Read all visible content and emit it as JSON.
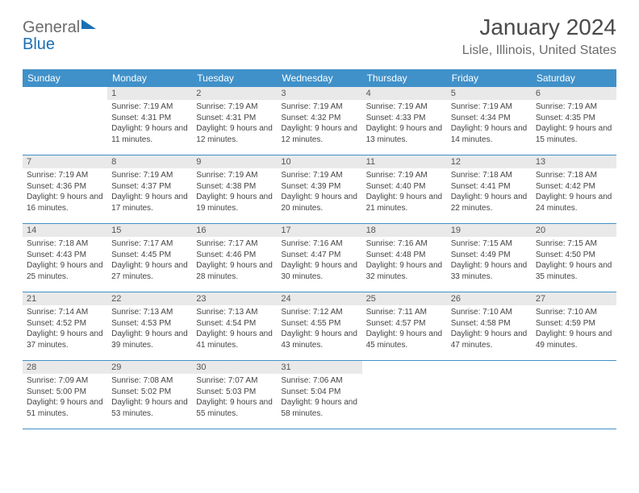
{
  "logo": {
    "word1": "General",
    "word2": "Blue"
  },
  "title": "January 2024",
  "location": "Lisle, Illinois, United States",
  "colors": {
    "header_bar": "#4091c9",
    "daynum_bg": "#e9e9e9",
    "text": "#444444",
    "title": "#4a4a4a",
    "logo_gray": "#6b6b6b",
    "logo_blue": "#1a6fb5",
    "border": "#4091c9",
    "background": "#ffffff"
  },
  "typography": {
    "title_fontsize": 28,
    "location_fontsize": 16,
    "dow_fontsize": 12,
    "daynum_fontsize": 11,
    "body_fontsize": 10
  },
  "daysOfWeek": [
    "Sunday",
    "Monday",
    "Tuesday",
    "Wednesday",
    "Thursday",
    "Friday",
    "Saturday"
  ],
  "weeks": [
    [
      {
        "num": "",
        "sunrise": "",
        "sunset": "",
        "daylight": ""
      },
      {
        "num": "1",
        "sunrise": "Sunrise: 7:19 AM",
        "sunset": "Sunset: 4:31 PM",
        "daylight": "Daylight: 9 hours and 11 minutes."
      },
      {
        "num": "2",
        "sunrise": "Sunrise: 7:19 AM",
        "sunset": "Sunset: 4:31 PM",
        "daylight": "Daylight: 9 hours and 12 minutes."
      },
      {
        "num": "3",
        "sunrise": "Sunrise: 7:19 AM",
        "sunset": "Sunset: 4:32 PM",
        "daylight": "Daylight: 9 hours and 12 minutes."
      },
      {
        "num": "4",
        "sunrise": "Sunrise: 7:19 AM",
        "sunset": "Sunset: 4:33 PM",
        "daylight": "Daylight: 9 hours and 13 minutes."
      },
      {
        "num": "5",
        "sunrise": "Sunrise: 7:19 AM",
        "sunset": "Sunset: 4:34 PM",
        "daylight": "Daylight: 9 hours and 14 minutes."
      },
      {
        "num": "6",
        "sunrise": "Sunrise: 7:19 AM",
        "sunset": "Sunset: 4:35 PM",
        "daylight": "Daylight: 9 hours and 15 minutes."
      }
    ],
    [
      {
        "num": "7",
        "sunrise": "Sunrise: 7:19 AM",
        "sunset": "Sunset: 4:36 PM",
        "daylight": "Daylight: 9 hours and 16 minutes."
      },
      {
        "num": "8",
        "sunrise": "Sunrise: 7:19 AM",
        "sunset": "Sunset: 4:37 PM",
        "daylight": "Daylight: 9 hours and 17 minutes."
      },
      {
        "num": "9",
        "sunrise": "Sunrise: 7:19 AM",
        "sunset": "Sunset: 4:38 PM",
        "daylight": "Daylight: 9 hours and 19 minutes."
      },
      {
        "num": "10",
        "sunrise": "Sunrise: 7:19 AM",
        "sunset": "Sunset: 4:39 PM",
        "daylight": "Daylight: 9 hours and 20 minutes."
      },
      {
        "num": "11",
        "sunrise": "Sunrise: 7:19 AM",
        "sunset": "Sunset: 4:40 PM",
        "daylight": "Daylight: 9 hours and 21 minutes."
      },
      {
        "num": "12",
        "sunrise": "Sunrise: 7:18 AM",
        "sunset": "Sunset: 4:41 PM",
        "daylight": "Daylight: 9 hours and 22 minutes."
      },
      {
        "num": "13",
        "sunrise": "Sunrise: 7:18 AM",
        "sunset": "Sunset: 4:42 PM",
        "daylight": "Daylight: 9 hours and 24 minutes."
      }
    ],
    [
      {
        "num": "14",
        "sunrise": "Sunrise: 7:18 AM",
        "sunset": "Sunset: 4:43 PM",
        "daylight": "Daylight: 9 hours and 25 minutes."
      },
      {
        "num": "15",
        "sunrise": "Sunrise: 7:17 AM",
        "sunset": "Sunset: 4:45 PM",
        "daylight": "Daylight: 9 hours and 27 minutes."
      },
      {
        "num": "16",
        "sunrise": "Sunrise: 7:17 AM",
        "sunset": "Sunset: 4:46 PM",
        "daylight": "Daylight: 9 hours and 28 minutes."
      },
      {
        "num": "17",
        "sunrise": "Sunrise: 7:16 AM",
        "sunset": "Sunset: 4:47 PM",
        "daylight": "Daylight: 9 hours and 30 minutes."
      },
      {
        "num": "18",
        "sunrise": "Sunrise: 7:16 AM",
        "sunset": "Sunset: 4:48 PM",
        "daylight": "Daylight: 9 hours and 32 minutes."
      },
      {
        "num": "19",
        "sunrise": "Sunrise: 7:15 AM",
        "sunset": "Sunset: 4:49 PM",
        "daylight": "Daylight: 9 hours and 33 minutes."
      },
      {
        "num": "20",
        "sunrise": "Sunrise: 7:15 AM",
        "sunset": "Sunset: 4:50 PM",
        "daylight": "Daylight: 9 hours and 35 minutes."
      }
    ],
    [
      {
        "num": "21",
        "sunrise": "Sunrise: 7:14 AM",
        "sunset": "Sunset: 4:52 PM",
        "daylight": "Daylight: 9 hours and 37 minutes."
      },
      {
        "num": "22",
        "sunrise": "Sunrise: 7:13 AM",
        "sunset": "Sunset: 4:53 PM",
        "daylight": "Daylight: 9 hours and 39 minutes."
      },
      {
        "num": "23",
        "sunrise": "Sunrise: 7:13 AM",
        "sunset": "Sunset: 4:54 PM",
        "daylight": "Daylight: 9 hours and 41 minutes."
      },
      {
        "num": "24",
        "sunrise": "Sunrise: 7:12 AM",
        "sunset": "Sunset: 4:55 PM",
        "daylight": "Daylight: 9 hours and 43 minutes."
      },
      {
        "num": "25",
        "sunrise": "Sunrise: 7:11 AM",
        "sunset": "Sunset: 4:57 PM",
        "daylight": "Daylight: 9 hours and 45 minutes."
      },
      {
        "num": "26",
        "sunrise": "Sunrise: 7:10 AM",
        "sunset": "Sunset: 4:58 PM",
        "daylight": "Daylight: 9 hours and 47 minutes."
      },
      {
        "num": "27",
        "sunrise": "Sunrise: 7:10 AM",
        "sunset": "Sunset: 4:59 PM",
        "daylight": "Daylight: 9 hours and 49 minutes."
      }
    ],
    [
      {
        "num": "28",
        "sunrise": "Sunrise: 7:09 AM",
        "sunset": "Sunset: 5:00 PM",
        "daylight": "Daylight: 9 hours and 51 minutes."
      },
      {
        "num": "29",
        "sunrise": "Sunrise: 7:08 AM",
        "sunset": "Sunset: 5:02 PM",
        "daylight": "Daylight: 9 hours and 53 minutes."
      },
      {
        "num": "30",
        "sunrise": "Sunrise: 7:07 AM",
        "sunset": "Sunset: 5:03 PM",
        "daylight": "Daylight: 9 hours and 55 minutes."
      },
      {
        "num": "31",
        "sunrise": "Sunrise: 7:06 AM",
        "sunset": "Sunset: 5:04 PM",
        "daylight": "Daylight: 9 hours and 58 minutes."
      },
      {
        "num": "",
        "sunrise": "",
        "sunset": "",
        "daylight": ""
      },
      {
        "num": "",
        "sunrise": "",
        "sunset": "",
        "daylight": ""
      },
      {
        "num": "",
        "sunrise": "",
        "sunset": "",
        "daylight": ""
      }
    ]
  ]
}
